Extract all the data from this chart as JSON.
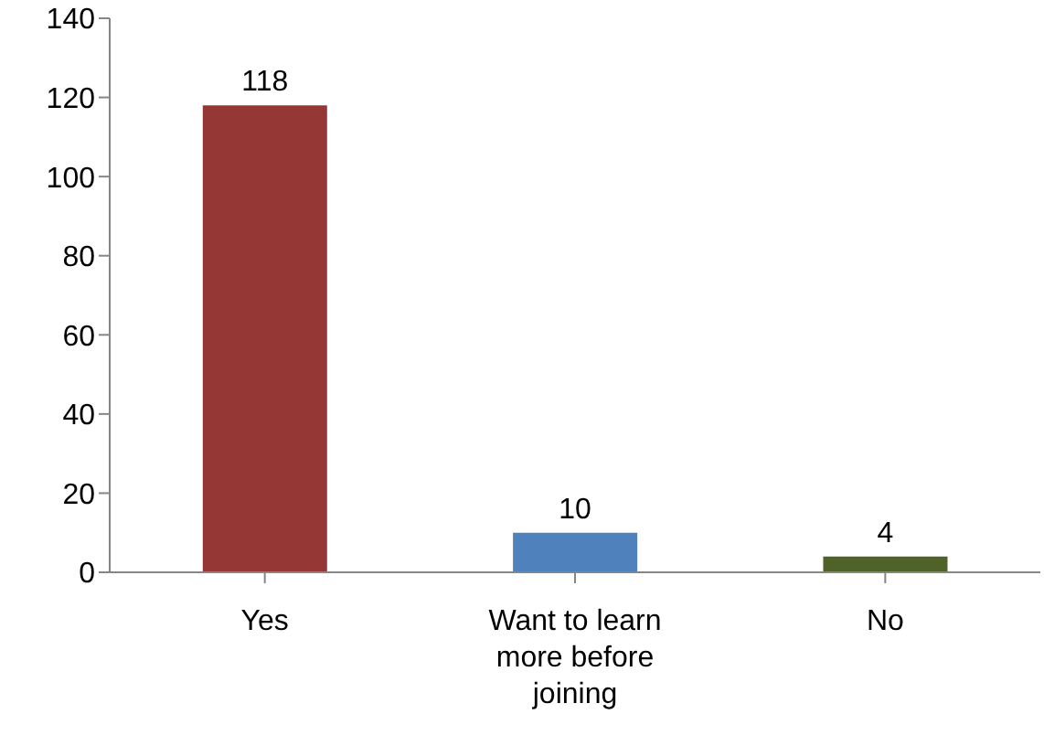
{
  "chart_data": {
    "type": "bar",
    "categories": [
      "Yes",
      "Want to learn more before joining",
      "No"
    ],
    "values": [
      118,
      10,
      4
    ],
    "colors": [
      "#953735",
      "#4f81bd",
      "#4f6228"
    ],
    "ylim": [
      0,
      140
    ],
    "yticks": [
      0,
      20,
      40,
      60,
      80,
      100,
      120,
      140
    ],
    "data_labels": true
  }
}
